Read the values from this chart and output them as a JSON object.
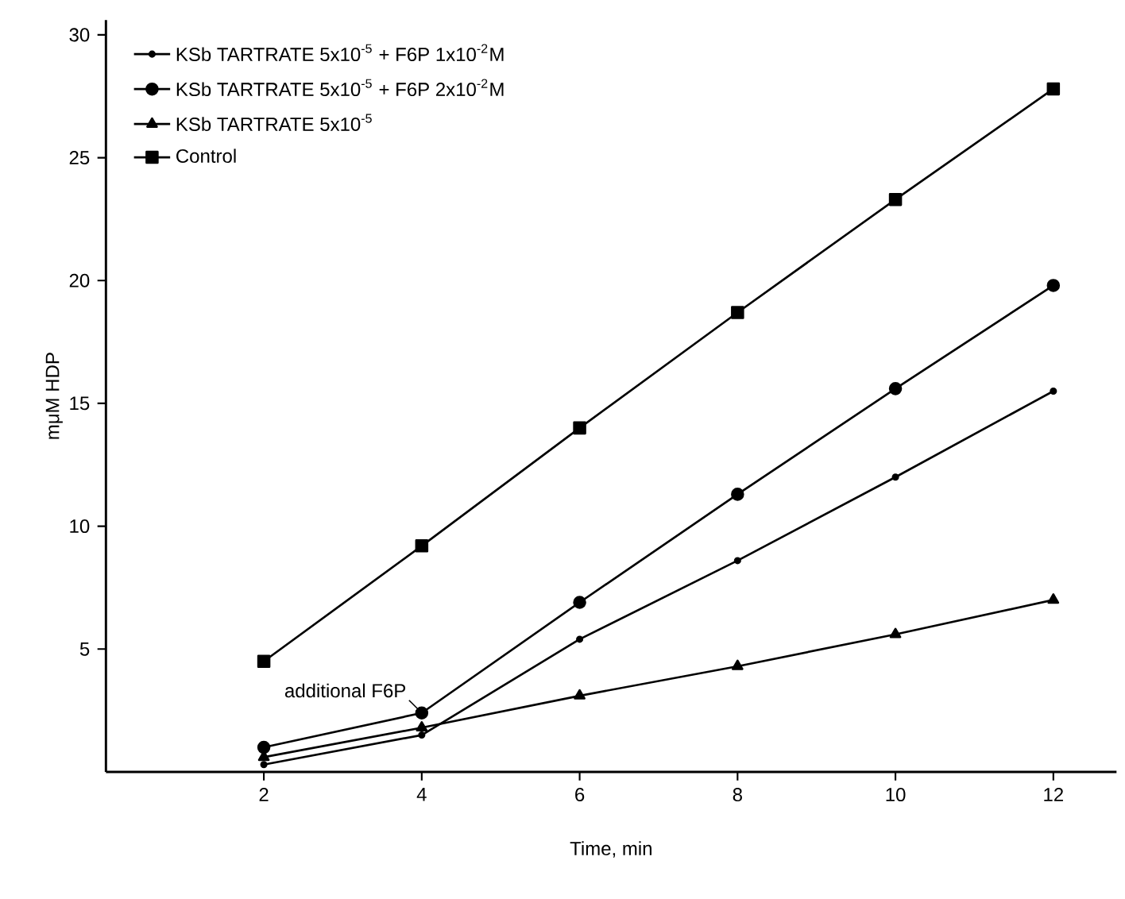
{
  "chart_data": {
    "type": "line",
    "xlabel": "Time,  min",
    "ylabel": "mμM  HDP",
    "x": [
      2,
      4,
      6,
      8,
      10,
      12
    ],
    "series": [
      {
        "name": "KSb  TARTRATE  5x10$^{-5}$ + F6P  1x10$^{-2}$M",
        "color": "#000000",
        "marker": "circle",
        "values": [
          0.3,
          1.5,
          5.4,
          8.6,
          12.0,
          15.5
        ]
      },
      {
        "name": "KSb  TARTRATE  5x10$^{-5}$ + F6P  2x10$^{-2}$M",
        "color": "#000000",
        "marker": "circle",
        "values": [
          1.0,
          2.4,
          6.9,
          11.3,
          15.6,
          19.8
        ]
      },
      {
        "name": "KSb  TARTRATE  5x10$^{-5}$",
        "color": "#000000",
        "marker": "triangle",
        "values": [
          0.6,
          1.8,
          3.1,
          4.3,
          5.6,
          7.0
        ]
      },
      {
        "name": "Control",
        "color": "#000000",
        "marker": "square",
        "values": [
          4.5,
          9.2,
          14.0,
          18.7,
          23.3,
          27.8
        ]
      }
    ],
    "xlim": [
      0,
      12.8
    ],
    "ylim": [
      0,
      30.6
    ],
    "xticks": [
      2,
      4,
      6,
      8,
      10,
      12
    ],
    "yticks": [
      5,
      10,
      15,
      20,
      25,
      30
    ],
    "annotations": [
      {
        "text": "additional F6P",
        "x": 4,
        "y": 2.4
      }
    ],
    "legend": "top left",
    "grid": false,
    "line_style": "solid"
  }
}
